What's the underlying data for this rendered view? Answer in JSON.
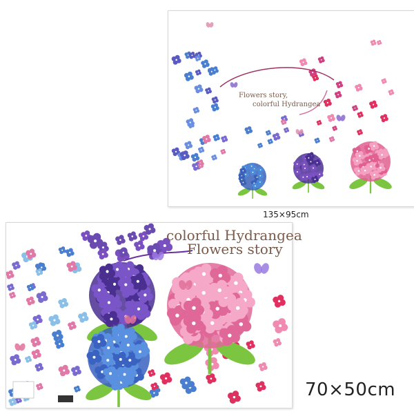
{
  "top_panel": {
    "line1": "Flowers story,",
    "line2": "colorful Hydrangea",
    "size_label": "135×95cm"
  },
  "bottom_panel": {
    "line1": "colorful Hydrangea",
    "line2": "Flowers story",
    "size_label": "70×50cm"
  },
  "colors": {
    "blue": "#4a7fd0",
    "purple": "#6a4bb0",
    "pink": "#f08ab0",
    "red": "#e03060",
    "leaf": "#7cc540",
    "text": "#7a5a4a"
  }
}
